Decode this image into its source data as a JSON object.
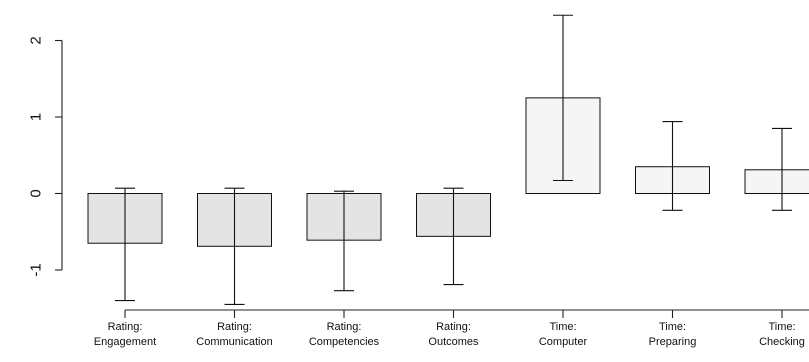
{
  "chart_data": {
    "type": "bar",
    "title": "",
    "xlabel": "",
    "ylabel": "",
    "ylim": [
      -1.5,
      2.5
    ],
    "yticks": [
      -1,
      0,
      1,
      2
    ],
    "ytick_labels": [
      "-1",
      "0",
      "1",
      "2"
    ],
    "grid": false,
    "legend": "none",
    "categories": [
      [
        "Rating:",
        "Engagement"
      ],
      [
        "Rating:",
        "Communication"
      ],
      [
        "Rating:",
        "Competencies"
      ],
      [
        "Rating:",
        "Outcomes"
      ],
      [
        "Time:",
        "Computer"
      ],
      [
        "Time:",
        "Preparing"
      ],
      [
        "Time:",
        "Checking"
      ]
    ],
    "values": [
      -0.65,
      -0.69,
      -0.61,
      -0.56,
      1.25,
      0.35,
      0.31
    ],
    "error_low": [
      -1.4,
      -1.45,
      -1.27,
      -1.19,
      0.17,
      -0.22,
      -0.22
    ],
    "error_high": [
      0.07,
      0.07,
      0.03,
      0.07,
      2.33,
      0.94,
      0.85
    ],
    "colors": {
      "negative_fill": "#e4e4e4",
      "positive_fill": "#f5f5f5",
      "stroke": "#111111"
    }
  }
}
